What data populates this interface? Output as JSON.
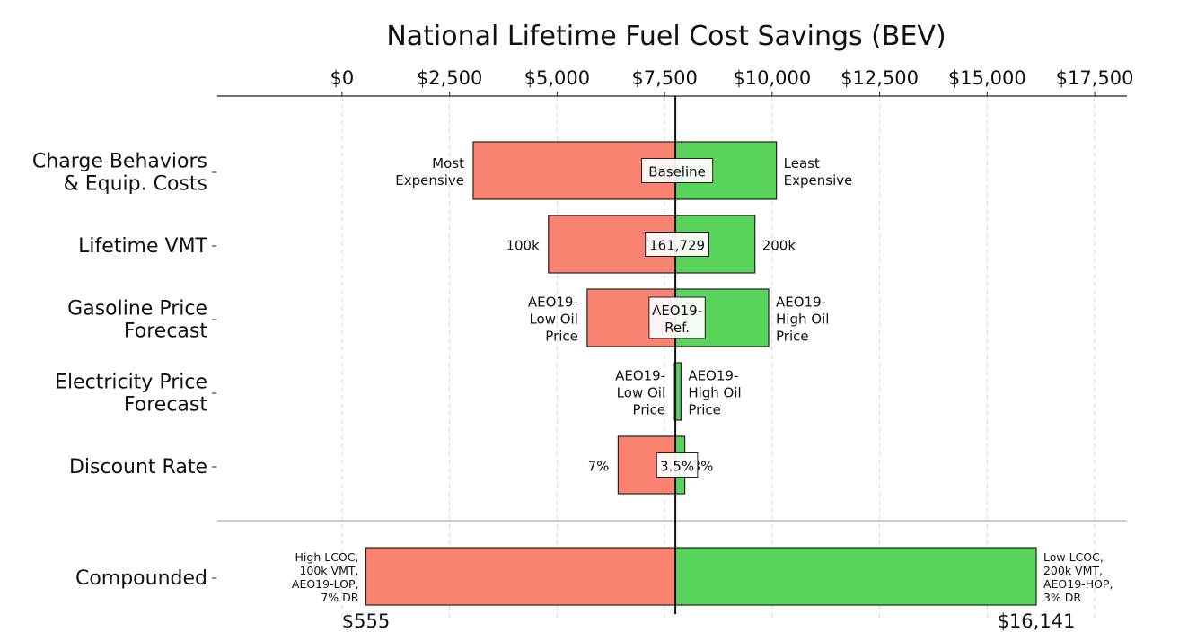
{
  "chart_data": {
    "type": "bar",
    "subtype": "tornado",
    "title": "National Lifetime Fuel Cost Savings (BEV)",
    "x_axis_position": "top",
    "xlim": [
      -2900,
      18250
    ],
    "xticks": [
      0,
      2500,
      5000,
      7500,
      10000,
      12500,
      15000,
      17500
    ],
    "xtick_labels": [
      "$0",
      "$2,500",
      "$5,000",
      "$7,500",
      "$10,000",
      "$12,500",
      "$15,000",
      "$17,500"
    ],
    "grid": "vertical dashed",
    "baseline_value": 7750,
    "low_color": "#fa8270",
    "high_color": "#58d45a",
    "categories": [
      {
        "label_lines": [
          "Charge Behaviors",
          "& Equip. Costs"
        ],
        "low": 3050,
        "high": 10100,
        "low_label": [
          "Most",
          "Expensive"
        ],
        "high_label": [
          "Least",
          "Expensive"
        ],
        "baseline_label": [
          "Baseline"
        ]
      },
      {
        "label_lines": [
          "Lifetime VMT"
        ],
        "low": 4800,
        "high": 9600,
        "low_label": [
          "100k"
        ],
        "high_label": [
          "200k"
        ],
        "baseline_label": [
          "161,729"
        ]
      },
      {
        "label_lines": [
          "Gasoline Price",
          "Forecast"
        ],
        "low": 5700,
        "high": 9920,
        "low_label": [
          "AEO19-",
          "Low Oil",
          "Price"
        ],
        "high_label": [
          "AEO19-",
          "High Oil",
          "Price"
        ],
        "baseline_label": [
          "AEO19-",
          "Ref."
        ]
      },
      {
        "label_lines": [
          "Electricity Price",
          "Forecast"
        ],
        "low": 7730,
        "high": 7880,
        "low_label": [
          "AEO19-",
          "Low Oil",
          "Price"
        ],
        "high_label": [
          "AEO19-",
          "High Oil",
          "Price"
        ],
        "baseline_label": []
      },
      {
        "label_lines": [
          "Discount Rate"
        ],
        "low": 6420,
        "high": 7970,
        "low_label": [
          "7%"
        ],
        "high_label": [
          "3%"
        ],
        "baseline_label": [
          "3.5%"
        ]
      }
    ],
    "compounded": {
      "label_lines": [
        "Compounded"
      ],
      "low": 555,
      "high": 16141,
      "low_label": [
        "High LCOC,",
        "100k VMT,",
        "AEO19-LOP,",
        "7% DR"
      ],
      "high_label": [
        "Low LCOC,",
        "200k VMT,",
        "AEO19-HOP,",
        "3% DR"
      ],
      "low_value_label": "$555",
      "high_value_label": "$16,141"
    }
  }
}
